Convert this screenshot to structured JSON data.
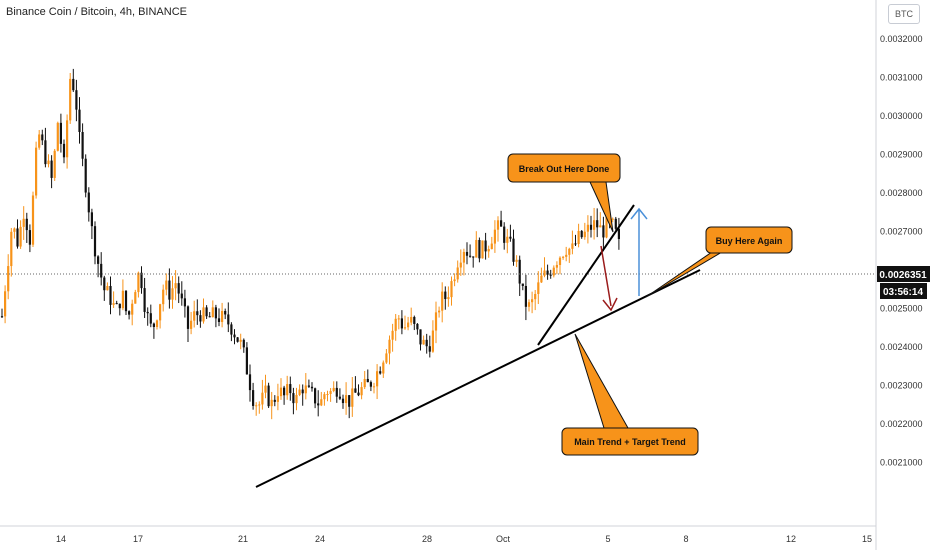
{
  "header": {
    "title": "Binance Coin / Bitcoin, 4h, BINANCE",
    "currency_button": "BTC"
  },
  "colors": {
    "up": "#f7931a",
    "down": "#111111",
    "callout_fill": "#f7931a",
    "callout_stroke": "#111111",
    "arrow_up": "#4a90d9",
    "arrow_down": "#9b1c1c",
    "trendline": "#000000"
  },
  "chart_data": {
    "type": "candlestick",
    "title": "Binance Coin / Bitcoin, 4h, BINANCE",
    "ylim": [
      0.00202,
      0.00326
    ],
    "y_ticks": [
      "0.0032000",
      "0.0031000",
      "0.0030000",
      "0.0029000",
      "0.0028000",
      "0.0027000",
      "0.0025000",
      "0.0024000",
      "0.0023000",
      "0.0022000",
      "0.0021000"
    ],
    "x_ticks": [
      "14",
      "17",
      "21",
      "24",
      "28",
      "Oct",
      "5",
      "8",
      "12",
      "15"
    ],
    "last_price": "0.0026351",
    "countdown": "03:56:14",
    "grid": false,
    "price_path": [
      [
        0,
        0.00243
      ],
      [
        6,
        0.00258
      ],
      [
        12,
        0.00272
      ],
      [
        18,
        0.00267
      ],
      [
        24,
        0.00276
      ],
      [
        30,
        0.00268
      ],
      [
        38,
        0.00296
      ],
      [
        45,
        0.0029
      ],
      [
        52,
        0.00283
      ],
      [
        58,
        0.00299
      ],
      [
        64,
        0.00287
      ],
      [
        70,
        0.0031
      ],
      [
        75,
        0.00307
      ],
      [
        80,
        0.00292
      ],
      [
        86,
        0.00282
      ],
      [
        92,
        0.0027
      ],
      [
        98,
        0.00262
      ],
      [
        104,
        0.00255
      ],
      [
        110,
        0.00253
      ],
      [
        116,
        0.00249
      ],
      [
        122,
        0.00254
      ],
      [
        128,
        0.00247
      ],
      [
        134,
        0.00255
      ],
      [
        140,
        0.0026
      ],
      [
        146,
        0.00249
      ],
      [
        152,
        0.00244
      ],
      [
        158,
        0.0025
      ],
      [
        164,
        0.00256
      ],
      [
        170,
        0.00254
      ],
      [
        176,
        0.00257
      ],
      [
        182,
        0.00251
      ],
      [
        188,
        0.00245
      ],
      [
        194,
        0.00248
      ],
      [
        200,
        0.00249
      ],
      [
        206,
        0.00247
      ],
      [
        212,
        0.00248
      ],
      [
        218,
        0.00248
      ],
      [
        224,
        0.00247
      ],
      [
        230,
        0.00246
      ],
      [
        236,
        0.00243
      ],
      [
        242,
        0.0024
      ],
      [
        248,
        0.00233
      ],
      [
        254,
        0.00226
      ],
      [
        260,
        0.00225
      ],
      [
        266,
        0.00228
      ],
      [
        272,
        0.00225
      ],
      [
        278,
        0.00229
      ],
      [
        284,
        0.00227
      ],
      [
        290,
        0.00229
      ],
      [
        296,
        0.00226
      ],
      [
        302,
        0.0023
      ],
      [
        308,
        0.00228
      ],
      [
        314,
        0.00227
      ],
      [
        320,
        0.00225
      ],
      [
        326,
        0.00229
      ],
      [
        332,
        0.00228
      ],
      [
        338,
        0.0023
      ],
      [
        344,
        0.00227
      ],
      [
        350,
        0.00226
      ],
      [
        356,
        0.00228
      ],
      [
        362,
        0.00229
      ],
      [
        368,
        0.0023
      ],
      [
        374,
        0.00232
      ],
      [
        380,
        0.00235
      ],
      [
        386,
        0.0024
      ],
      [
        392,
        0.00244
      ],
      [
        398,
        0.00248
      ],
      [
        404,
        0.00245
      ],
      [
        410,
        0.00247
      ],
      [
        416,
        0.00244
      ],
      [
        422,
        0.00241
      ],
      [
        428,
        0.0024
      ],
      [
        434,
        0.00244
      ],
      [
        440,
        0.00252
      ],
      [
        446,
        0.00253
      ],
      [
        452,
        0.00257
      ],
      [
        458,
        0.00263
      ],
      [
        464,
        0.00266
      ],
      [
        470,
        0.00264
      ],
      [
        476,
        0.00266
      ],
      [
        482,
        0.00265
      ],
      [
        488,
        0.00267
      ],
      [
        494,
        0.0027
      ],
      [
        500,
        0.00271
      ],
      [
        506,
        0.00268
      ],
      [
        512,
        0.00265
      ],
      [
        518,
        0.0026
      ],
      [
        524,
        0.00252
      ],
      [
        530,
        0.0025
      ],
      [
        536,
        0.00254
      ],
      [
        542,
        0.00258
      ],
      [
        548,
        0.00259
      ],
      [
        554,
        0.00262
      ],
      [
        560,
        0.00264
      ],
      [
        566,
        0.00266
      ],
      [
        572,
        0.00265
      ],
      [
        578,
        0.00268
      ],
      [
        584,
        0.00269
      ],
      [
        590,
        0.00271
      ],
      [
        596,
        0.00272
      ],
      [
        602,
        0.0027
      ],
      [
        608,
        0.00272
      ],
      [
        614,
        0.00271
      ],
      [
        618,
        0.00267
      ],
      [
        622,
        0.00264
      ]
    ],
    "annotations": [
      {
        "text": "Break Out Here Done"
      },
      {
        "text": "Buy Here Again"
      },
      {
        "text": "Main Trend + Target Trend"
      }
    ]
  }
}
